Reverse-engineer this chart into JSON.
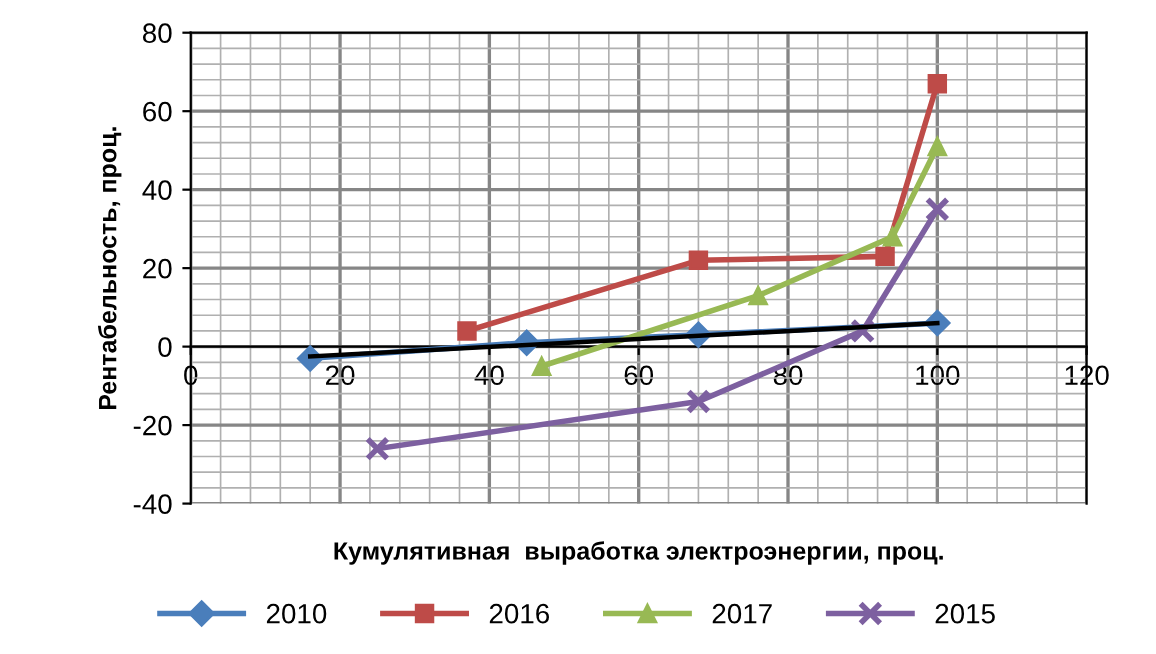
{
  "chart_data": {
    "type": "line",
    "xlabel": "Кумулятивная  выработка электроэнергии, проц.",
    "ylabel": "Рентабельность, проц.",
    "xlim": [
      0,
      120
    ],
    "xticks": [
      0,
      20,
      40,
      60,
      80,
      100,
      120
    ],
    "ylim": [
      -40,
      80
    ],
    "yticks": [
      -40,
      -20,
      0,
      20,
      40,
      60,
      80
    ],
    "grid": true,
    "legend": "bottom",
    "series": [
      {
        "name": "2010",
        "color": "#4a7ebb",
        "marker": "diamond",
        "x": [
          16,
          45,
          68,
          100
        ],
        "values": [
          -3,
          1,
          3,
          6
        ]
      },
      {
        "name": "2016",
        "color": "#be4b48",
        "marker": "square",
        "x": [
          37,
          68,
          93,
          100
        ],
        "values": [
          4,
          22,
          23,
          67
        ]
      },
      {
        "name": "2017",
        "color": "#98b954",
        "marker": "triangle",
        "x": [
          47,
          76,
          94,
          100
        ],
        "values": [
          -5,
          13,
          28,
          51
        ]
      },
      {
        "name": "2015",
        "color": "#7d60a0",
        "marker": "cross",
        "x": [
          25,
          68,
          90,
          100
        ],
        "values": [
          -26,
          -14,
          4,
          35
        ]
      },
      {
        "color": "#000000",
        "marker": "none",
        "x": [
          16,
          100
        ],
        "values": [
          -2.5,
          6
        ]
      }
    ]
  }
}
